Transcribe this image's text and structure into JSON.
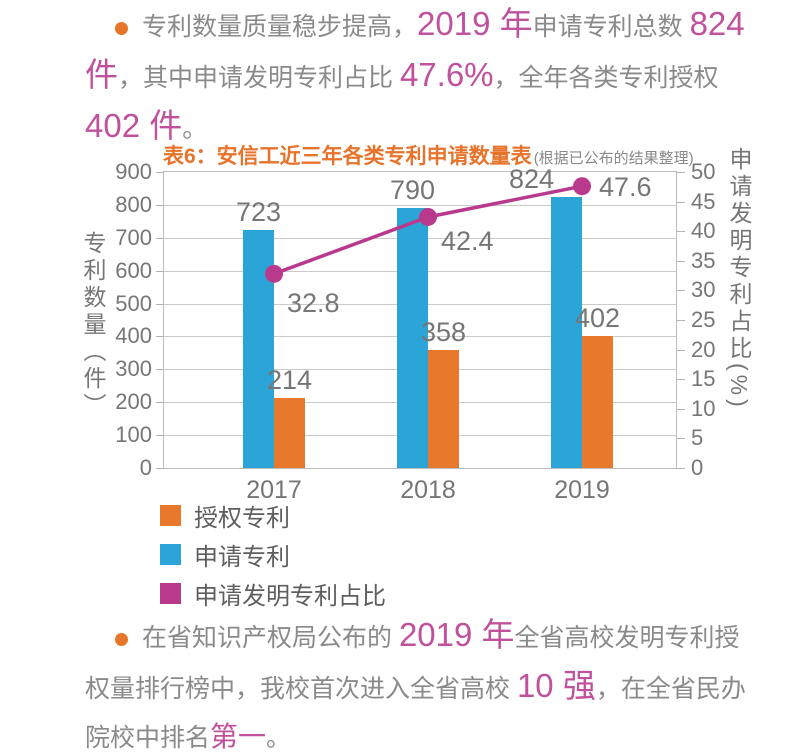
{
  "colors": {
    "highlight_text": "#c0519d",
    "body_text": "#8a8a8a",
    "title_orange": "#e8732a",
    "bullet_orange": "#e8762a",
    "bar_blue": "#2ba5d8",
    "bar_orange": "#e8782b",
    "line_magenta": "#b93a8d"
  },
  "paragraph_top": {
    "segments": [
      {
        "text": "专利数量质量稳步提高，",
        "style": "body"
      },
      {
        "text": "2019 年",
        "style": "highlight"
      },
      {
        "text": "申请专利总数 ",
        "style": "body"
      },
      {
        "text": "824 件",
        "style": "highlight"
      },
      {
        "text": "，其中申请发明专利占比 ",
        "style": "body"
      },
      {
        "text": "47.6%",
        "style": "highlight"
      },
      {
        "text": "，全年各类专利授权 ",
        "style": "body"
      },
      {
        "text": "402 件",
        "style": "highlight"
      },
      {
        "text": "。",
        "style": "body"
      }
    ]
  },
  "paragraph_bottom": {
    "segments": [
      {
        "text": "在省知识产权局公布的 ",
        "style": "body"
      },
      {
        "text": "2019 年",
        "style": "highlight"
      },
      {
        "text": "全省高校发明专利授权量排行榜中，我校首次进入全省高校 ",
        "style": "body"
      },
      {
        "text": "10 强",
        "style": "highlight"
      },
      {
        "text": "，在全省民办院校中排名",
        "style": "body"
      },
      {
        "text": "第一",
        "style": "emphasis"
      },
      {
        "text": "。",
        "style": "body"
      }
    ]
  },
  "chart_data": {
    "type": "bar+line",
    "title": "表6：安信工近三年各类专利申请数量表",
    "title_note": "(根据已公布的结果整理)",
    "categories": [
      "2017",
      "2018",
      "2019"
    ],
    "series": [
      {
        "name": "申请专利",
        "type": "bar",
        "color": "#2ba5d8",
        "values": [
          723,
          790,
          824
        ]
      },
      {
        "name": "授权专利",
        "type": "bar",
        "color": "#e8782b",
        "values": [
          214,
          358,
          402
        ]
      },
      {
        "name": "申请发明专利占比",
        "type": "line",
        "color": "#b93a8d",
        "values": [
          32.8,
          42.4,
          47.6
        ]
      }
    ],
    "left_axis": {
      "label": "专利数量（件）",
      "min": 0,
      "max": 900,
      "step": 100
    },
    "right_axis": {
      "label": "申请发明专利占比(%)",
      "min": 0,
      "max": 50,
      "step": 5
    },
    "grid": "horizontal",
    "legend_position": "bottom-left",
    "legend": [
      {
        "label": "授权专利",
        "color": "#e8782b"
      },
      {
        "label": "申请专利",
        "color": "#2ba5d8"
      },
      {
        "label": "申请发明专利占比",
        "color": "#b93a8d"
      }
    ]
  }
}
